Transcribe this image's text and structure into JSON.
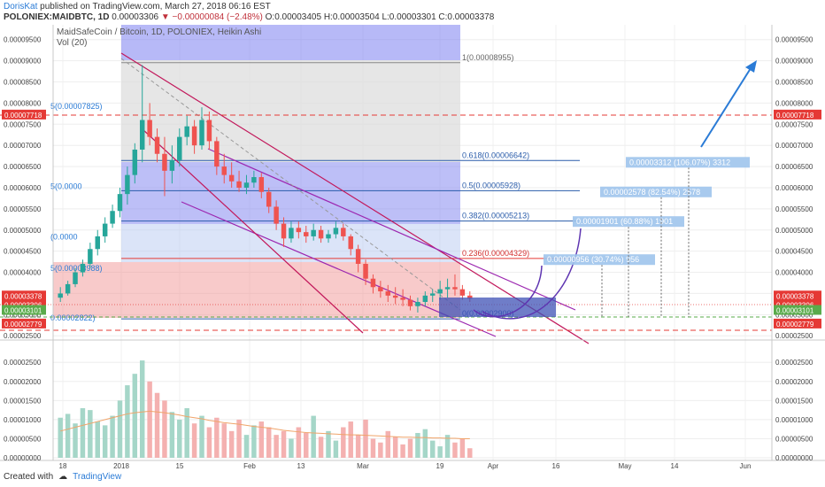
{
  "header": {
    "author": "DorisKat",
    "published": "published on TradingView.com, March 27, 2018 06:16 EST"
  },
  "ohlc": {
    "symbol": "POLONIEX:MAIDBTC, 1D",
    "last": "0.00003306",
    "arrow": "▼",
    "change": "−0.00000084 (−2.48%)",
    "o_label": "O:",
    "o": "0.00003405",
    "h_label": "H:",
    "h": "0.00003504",
    "l_label": "L:",
    "l": "0.00003301",
    "c_label": "C:",
    "c": "0.00003378"
  },
  "legend": {
    "title": "MaidSafeCoin / Bitcoin, 1D, POLONIEX, Heikin Ashi",
    "vol": "Vol (20)"
  },
  "footer": {
    "created": "Created with",
    "brand": "TradingView"
  },
  "colors": {
    "up": "#26a69a",
    "down": "#ef5350",
    "fib_blue": "#2a7bd6",
    "channel": "#c2185b",
    "price_red": "#e53935",
    "green_line": "#5aab4b"
  },
  "chart_data": {
    "type": "candlestick",
    "style": "Heikin Ashi",
    "grid": true,
    "price_axis": {
      "ticks": [
        "0.00009500",
        "0.00009000",
        "0.00008500",
        "0.00008000",
        "0.00007500",
        "0.00007000",
        "0.00006500",
        "0.00006000",
        "0.00005500",
        "0.00005000",
        "0.00004500",
        "0.00004000",
        "0.00003500",
        "0.00003000",
        "0.00002500"
      ],
      "range": [
        2.4e-05,
        9.85e-05
      ]
    },
    "volume_axis": {
      "ticks": [
        "0.00002500",
        "0.00002000",
        "0.00001500",
        "0.00001000",
        "0.00000500",
        "0.00000000"
      ],
      "range": [
        0,
        2.9e-05
      ]
    },
    "x_ticks": [
      "18",
      "2018",
      "15",
      "Feb",
      "13",
      "Mar",
      "19",
      "Apr",
      "16",
      "May",
      "14",
      "Jun"
    ],
    "price_labels": [
      {
        "text": "0.00007718",
        "value": 7.718e-05,
        "color": "#e53935"
      },
      {
        "text": "0.00003378",
        "value": 3.378e-05,
        "color": "#e53935"
      },
      {
        "text": "0.00003306",
        "value": 3.306e-05,
        "color": "#e53935"
      },
      {
        "text": "0.00003101",
        "value": 3.101e-05,
        "color": "#5aab4b"
      },
      {
        "text": "0.00002779",
        "value": 2.779e-05,
        "color": "#e53935"
      }
    ],
    "fib_levels": [
      {
        "label": "1(0.00008955)",
        "value": 8.955e-05
      },
      {
        "label": "0.618(0.00006642)",
        "value": 6.642e-05
      },
      {
        "label": "0.5(0.00005928)",
        "value": 5.928e-05
      },
      {
        "label": "0.382(0.00005213)",
        "value": 5.213e-05
      },
      {
        "label": "0.236(0.00004329)",
        "value": 4.329e-05
      },
      {
        "label": "0(0.00002900)",
        "value": 2.9e-05
      }
    ],
    "left_fib_labels": [
      {
        "label": "5(0.00007825)",
        "value": 7.825e-05
      },
      {
        "label": "5(0.0000",
        "value": 5.928e-05
      },
      {
        "label": "(0.0000",
        "value": 4.73e-05
      },
      {
        "label": "5(0.00003988)",
        "value": 3.988e-05
      },
      {
        "label": "0.00002822)",
        "value": 2.822e-05
      }
    ],
    "targets": [
      {
        "label": "0.00000956 (30.74%) 956",
        "value": 4.3e-05
      },
      {
        "label": "0.00001901 (60.88%) 1901",
        "value": 5.2e-05
      },
      {
        "label": "0.00002578 (82.54%) 2578",
        "value": 5.9e-05
      },
      {
        "label": "0.00003312 (106.07%) 3312",
        "value": 6.6e-05
      }
    ],
    "candles": [
      [
        3.4e-05,
        3.65e-05,
        3.3e-05,
        3.5e-05
      ],
      [
        3.5e-05,
        3.8e-05,
        3.45e-05,
        3.72e-05
      ],
      [
        3.72e-05,
        4.1e-05,
        3.65e-05,
        4e-05
      ],
      [
        4e-05,
        4.3e-05,
        3.9e-05,
        4.2e-05
      ],
      [
        4.2e-05,
        4.7e-05,
        4.1e-05,
        4.55e-05
      ],
      [
        4.55e-05,
        5e-05,
        4.4e-05,
        4.85e-05
      ],
      [
        4.85e-05,
        5.3e-05,
        4.7e-05,
        5.15e-05
      ],
      [
        5.15e-05,
        5.6e-05,
        5.05e-05,
        5.45e-05
      ],
      [
        5.45e-05,
        6e-05,
        5.3e-05,
        5.85e-05
      ],
      [
        5.85e-05,
        6.5e-05,
        5.6e-05,
        6.3e-05
      ],
      [
        6.3e-05,
        7.05e-05,
        6.1e-05,
        6.9e-05
      ],
      [
        6.9e-05,
        8.9e-05,
        6.6e-05,
        7.6e-05
      ],
      [
        7.6e-05,
        8e-05,
        7e-05,
        7.2e-05
      ],
      [
        7.2e-05,
        7.4e-05,
        6.6e-05,
        6.8e-05
      ],
      [
        6.8e-05,
        7.2e-05,
        5.8e-05,
        6.4e-05
      ],
      [
        6.4e-05,
        7e-05,
        6.1e-05,
        6.65e-05
      ],
      [
        6.65e-05,
        7.4e-05,
        6.5e-05,
        7.2e-05
      ],
      [
        7.2e-05,
        7.7e-05,
        7e-05,
        7.45e-05
      ],
      [
        7.45e-05,
        7.6e-05,
        6.8e-05,
        7e-05
      ],
      [
        7e-05,
        7.9e-05,
        6.9e-05,
        7.6e-05
      ],
      [
        7.6e-05,
        7.8e-05,
        6.9e-05,
        7.1e-05
      ],
      [
        7.1e-05,
        7.2e-05,
        6.3e-05,
        6.5e-05
      ],
      [
        6.5e-05,
        6.8e-05,
        6.1e-05,
        6.3e-05
      ],
      [
        6.3e-05,
        6.6e-05,
        6e-05,
        6.15e-05
      ],
      [
        6.15e-05,
        6.4e-05,
        5.9e-05,
        6e-05
      ],
      [
        6e-05,
        6.3e-05,
        5.85e-05,
        6.12e-05
      ],
      [
        6.12e-05,
        6.4e-05,
        6e-05,
        6.25e-05
      ],
      [
        6.25e-05,
        6.35e-05,
        5.75e-05,
        5.9e-05
      ],
      [
        5.9e-05,
        6e-05,
        5.4e-05,
        5.55e-05
      ],
      [
        5.55e-05,
        5.7e-05,
        5e-05,
        5.15e-05
      ],
      [
        5.15e-05,
        5.3e-05,
        4.6e-05,
        4.8e-05
      ],
      [
        4.8e-05,
        5.2e-05,
        4.7e-05,
        5.05e-05
      ],
      [
        5.05e-05,
        5.2e-05,
        4.8e-05,
        4.95e-05
      ],
      [
        4.95e-05,
        5.1e-05,
        4.7e-05,
        4.85e-05
      ],
      [
        4.85e-05,
        5.15e-05,
        4.75e-05,
        5e-05
      ],
      [
        5e-05,
        5.1e-05,
        4.7e-05,
        4.8e-05
      ],
      [
        4.8e-05,
        5e-05,
        4.7e-05,
        4.9e-05
      ],
      [
        4.9e-05,
        5.2e-05,
        4.8e-05,
        5.05e-05
      ],
      [
        5.05e-05,
        5.15e-05,
        4.75e-05,
        4.85e-05
      ],
      [
        4.85e-05,
        4.9e-05,
        4.4e-05,
        4.55e-05
      ],
      [
        4.55e-05,
        4.65e-05,
        4e-05,
        4.2e-05
      ],
      [
        4.2e-05,
        4.3e-05,
        3.7e-05,
        3.85e-05
      ],
      [
        3.85e-05,
        3.95e-05,
        3.5e-05,
        3.65e-05
      ],
      [
        3.65e-05,
        3.8e-05,
        3.4e-05,
        3.55e-05
      ],
      [
        3.55e-05,
        3.7e-05,
        3.3e-05,
        3.45e-05
      ],
      [
        3.45e-05,
        3.65e-05,
        3.25e-05,
        3.4e-05
      ],
      [
        3.4e-05,
        3.6e-05,
        3.2e-05,
        3.35e-05
      ],
      [
        3.35e-05,
        3.45e-05,
        3.1e-05,
        3.2e-05
      ],
      [
        3.2e-05,
        3.4e-05,
        3.05e-05,
        3.3e-05
      ],
      [
        3.3e-05,
        3.55e-05,
        3.2e-05,
        3.45e-05
      ],
      [
        3.45e-05,
        3.6e-05,
        3.3e-05,
        3.5e-05
      ],
      [
        3.5e-05,
        3.8e-05,
        3.35e-05,
        3.6e-05
      ],
      [
        3.6e-05,
        3.85e-05,
        3.4e-05,
        3.65e-05
      ],
      [
        3.65e-05,
        3.95e-05,
        3.45e-05,
        3.6e-05
      ],
      [
        3.6e-05,
        3.7e-05,
        3.35e-05,
        3.45e-05
      ],
      [
        3.45e-05,
        3.55e-05,
        3.3e-05,
        3.38e-05
      ]
    ],
    "volumes": [
      1.05e-05,
      1.15e-05,
      9e-06,
      1.3e-05,
      1.25e-05,
      9.5e-06,
      8.5e-06,
      1.1e-05,
      1.5e-05,
      1.9e-05,
      2.2e-05,
      2.55e-05,
      2e-05,
      1.7e-05,
      1.5e-05,
      1.2e-05,
      1e-05,
      1.3e-05,
      9e-06,
      1.1e-05,
      8e-06,
      1.05e-05,
      9e-06,
      7e-06,
      1e-05,
      6e-06,
      8.5e-06,
      9.5e-06,
      8e-06,
      6e-06,
      7e-06,
      5e-06,
      8e-06,
      6.5e-06,
      1.1e-05,
      5.5e-06,
      7e-06,
      4.5e-06,
      8e-06,
      9.5e-06,
      6e-06,
      1e-05,
      5e-06,
      4e-06,
      7e-06,
      5.5e-06,
      3.5e-06,
      5e-06,
      6.5e-06,
      7.5e-06,
      4.5e-06,
      3e-06,
      6e-06,
      4e-06,
      5e-06,
      2.5e-06
    ],
    "volume_ma": [
      7e-06,
      7.5e-06,
      8e-06,
      8.5e-06,
      9e-06,
      9.5e-06,
      1e-05,
      1.05e-05,
      1.1e-05,
      1.15e-05,
      1.18e-05,
      1.2e-05,
      1.22e-05,
      1.2e-05,
      1.18e-05,
      1.15e-05,
      1.12e-05,
      1.08e-05,
      1.05e-05,
      1.02e-05,
      9.8e-06,
      9.5e-06,
      9.2e-06,
      9e-06,
      8.8e-06,
      8.5e-06,
      8.2e-06,
      8e-06,
      7.8e-06,
      7.5e-06,
      7.2e-06,
      7e-06,
      6.8e-06,
      6.6e-06,
      6.5e-06,
      6.4e-06,
      6.3e-06,
      6.2e-06,
      6.1e-06,
      6e-06,
      6e-06,
      5.9e-06,
      5.8e-06,
      5.7e-06,
      5.6e-06,
      5.5e-06,
      5.4e-06,
      5.4e-06,
      5.3e-06,
      5.3e-06,
      5.2e-06,
      5.2e-06,
      5.1e-06,
      5.1e-06,
      5e-06,
      5e-06
    ]
  }
}
